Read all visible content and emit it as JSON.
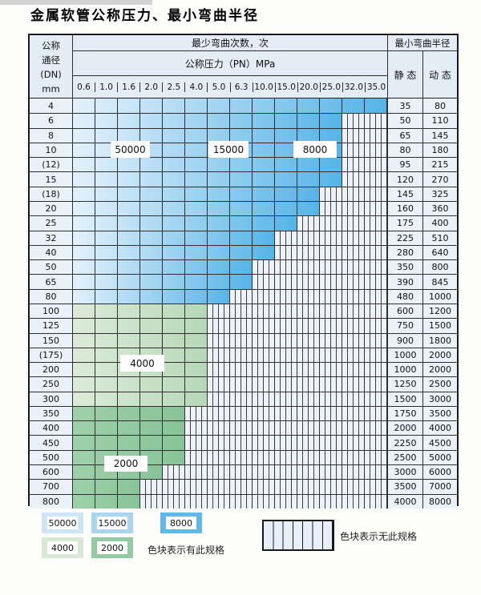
{
  "title": "金属软管公称压力、最小弯曲半径",
  "table": {
    "dn_header_lines": [
      "公称",
      "通径",
      "(DN)",
      "mm"
    ],
    "bend_times_header": "最少弯曲次数，次",
    "pressure_header": "公称压力（PN）MPa",
    "radius_header": "最小弯曲半径",
    "static_header": "静 态",
    "dynamic_header": "动 态",
    "pressure_columns": [
      "0.6",
      "1.0",
      "1.6",
      "2.0",
      "2.5",
      "4.0",
      "5.0",
      "6.3",
      "10.0",
      "15.0",
      "20.0",
      "25.0",
      "32.0",
      "35.0"
    ],
    "rows": [
      {
        "dn": "4",
        "cols": 14,
        "pn_max": "35.0",
        "band": "blue",
        "static": "35",
        "dynamic": "80"
      },
      {
        "dn": "6",
        "cols": 12,
        "pn_max": "25.0",
        "band": "blue",
        "static": "50",
        "dynamic": "110"
      },
      {
        "dn": "8",
        "cols": 12,
        "pn_max": "25.0",
        "band": "blue",
        "static": "65",
        "dynamic": "145"
      },
      {
        "dn": "10",
        "cols": 12,
        "pn_max": "25.0",
        "band": "blue",
        "static": "80",
        "dynamic": "180"
      },
      {
        "dn": "(12)",
        "cols": 12,
        "pn_max": "25.0",
        "band": "blue",
        "static": "95",
        "dynamic": "215"
      },
      {
        "dn": "15",
        "cols": 12,
        "pn_max": "25.0",
        "band": "blue",
        "static": "120",
        "dynamic": "270"
      },
      {
        "dn": "(18)",
        "cols": 11,
        "pn_max": "20.0",
        "band": "blue",
        "static": "145",
        "dynamic": "325"
      },
      {
        "dn": "20",
        "cols": 11,
        "pn_max": "20.0",
        "band": "blue",
        "static": "160",
        "dynamic": "360"
      },
      {
        "dn": "25",
        "cols": 10,
        "pn_max": "15.0",
        "band": "blue",
        "static": "175",
        "dynamic": "400"
      },
      {
        "dn": "32",
        "cols": 9,
        "pn_max": "10.0",
        "band": "blue",
        "static": "225",
        "dynamic": "510"
      },
      {
        "dn": "40",
        "cols": 9,
        "pn_max": "10.0",
        "band": "blue",
        "static": "280",
        "dynamic": "640"
      },
      {
        "dn": "50",
        "cols": 8,
        "pn_max": "6.3",
        "band": "blue",
        "static": "350",
        "dynamic": "800"
      },
      {
        "dn": "65",
        "cols": 8,
        "pn_max": "6.3",
        "band": "blue",
        "static": "390",
        "dynamic": "845"
      },
      {
        "dn": "80",
        "cols": 7,
        "pn_max": "5.0",
        "band": "blue",
        "static": "480",
        "dynamic": "1000"
      },
      {
        "dn": "100",
        "cols": 6,
        "pn_max": "4.0",
        "band": "green_light",
        "static": "600",
        "dynamic": "1200"
      },
      {
        "dn": "125",
        "cols": 6,
        "pn_max": "4.0",
        "band": "green_light",
        "static": "750",
        "dynamic": "1500"
      },
      {
        "dn": "150",
        "cols": 6,
        "pn_max": "4.0",
        "band": "green_light",
        "static": "900",
        "dynamic": "1800"
      },
      {
        "dn": "(175)",
        "cols": 6,
        "pn_max": "4.0",
        "band": "green_light",
        "static": "1000",
        "dynamic": "2000"
      },
      {
        "dn": "200",
        "cols": 6,
        "pn_max": "4.0",
        "band": "green_light",
        "static": "1000",
        "dynamic": "2000"
      },
      {
        "dn": "250",
        "cols": 6,
        "pn_max": "4.0",
        "band": "green_light",
        "static": "1250",
        "dynamic": "2500"
      },
      {
        "dn": "300",
        "cols": 6,
        "pn_max": "4.0",
        "band": "green_light",
        "static": "1500",
        "dynamic": "3000"
      },
      {
        "dn": "350",
        "cols": 5,
        "pn_max": "2.5",
        "band": "green_dark",
        "static": "1750",
        "dynamic": "3500"
      },
      {
        "dn": "400",
        "cols": 5,
        "pn_max": "2.5",
        "band": "green_dark",
        "static": "2000",
        "dynamic": "4000"
      },
      {
        "dn": "450",
        "cols": 5,
        "pn_max": "2.5",
        "band": "green_dark",
        "static": "2250",
        "dynamic": "4500"
      },
      {
        "dn": "500",
        "cols": 5,
        "pn_max": "2.5",
        "band": "green_dark",
        "static": "2500",
        "dynamic": "5000"
      },
      {
        "dn": "600",
        "cols": 4,
        "pn_max": "2.0",
        "band": "green_dark",
        "static": "3000",
        "dynamic": "6000"
      },
      {
        "dn": "700",
        "cols": 3,
        "pn_max": "1.6",
        "band": "green_dark",
        "static": "3500",
        "dynamic": "7000"
      },
      {
        "dn": "800",
        "cols": 3,
        "pn_max": "1.6",
        "band": "green_dark",
        "static": "4000",
        "dynamic": "8000"
      }
    ]
  },
  "cycle_labels": [
    {
      "text": "50000"
    },
    {
      "text": "15000"
    },
    {
      "text": "8000"
    },
    {
      "text": "4000"
    },
    {
      "text": "2000"
    }
  ],
  "legend": {
    "chips": [
      {
        "label": "50000",
        "color": "#cde5f7"
      },
      {
        "label": "15000",
        "color": "#a9d5f0"
      },
      {
        "label": "8000",
        "color": "#5fb8e8"
      },
      {
        "label": "4000",
        "color": "#d6e9d3"
      },
      {
        "label": "2000",
        "color": "#92cba4"
      }
    ],
    "has_spec_note": "色块表示有此规格",
    "no_spec_note": "色块表示无此规格"
  },
  "colors": {
    "blue_start": "#e3f1fb",
    "blue_end": "#55b4e7",
    "green_light_start": "#ddebd9",
    "green_light_end": "#b5d8b8",
    "green_dark_start": "#9ed1a9",
    "green_dark_end": "#88c398",
    "hatch_bg": "#eef3f9",
    "grid": "#2f2f2f"
  }
}
